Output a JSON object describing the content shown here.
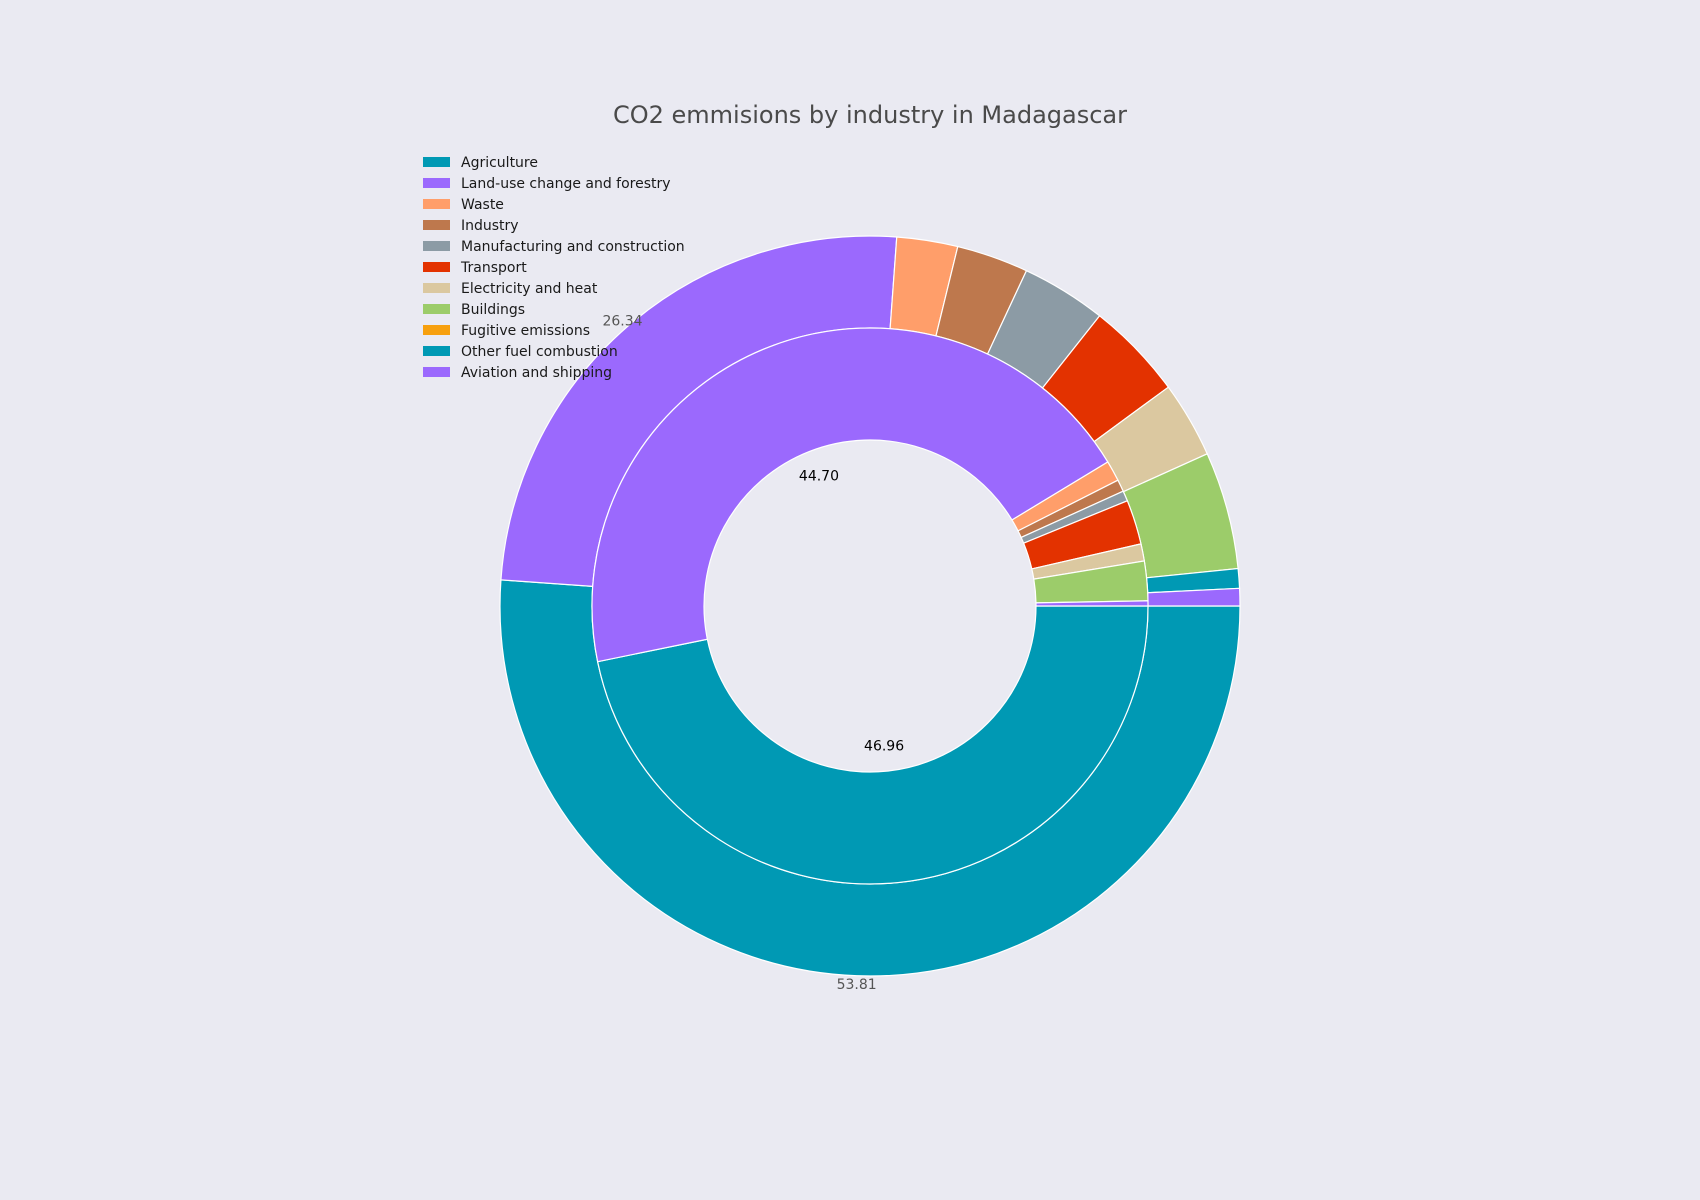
{
  "chart_data": {
    "type": "pie",
    "title": "CO2 emmisions by industry in Madagascar",
    "legend_position": "top-left",
    "categories": [
      "Agriculture",
      "Land-use change and forestry",
      "Waste",
      "Industry",
      "Manufacturing and construction",
      "Transport",
      "Electricity and heat",
      "Buildings",
      "Fugitive emissions",
      "Other fuel combustion",
      "Aviation and shipping"
    ],
    "colors": [
      "#0099B4",
      "#9B69FD",
      "#FF9E6A",
      "#BE784D",
      "#8C9BA5",
      "#E33200",
      "#DBC8A0",
      "#9CCC6A",
      "#F7A00F",
      "#0099B4",
      "#9B69FD"
    ],
    "inner": {
      "values": [
        46.96,
        44.7,
        1.2,
        0.7,
        0.6,
        2.6,
        1.0,
        2.3,
        0.0,
        0.0,
        0.3
      ],
      "labels": [
        "46.96",
        "44.70",
        "",
        "",
        "",
        "",
        "",
        "",
        "",
        "",
        ""
      ]
    },
    "outer": {
      "values": [
        53.81,
        26.34,
        2.8,
        3.3,
        3.9,
        4.5,
        3.5,
        5.4,
        0.0,
        0.9,
        0.8
      ],
      "labels": [
        "53.81",
        "26.34",
        "",
        "",
        "",
        "",
        "",
        "",
        "",
        "",
        ""
      ]
    }
  }
}
